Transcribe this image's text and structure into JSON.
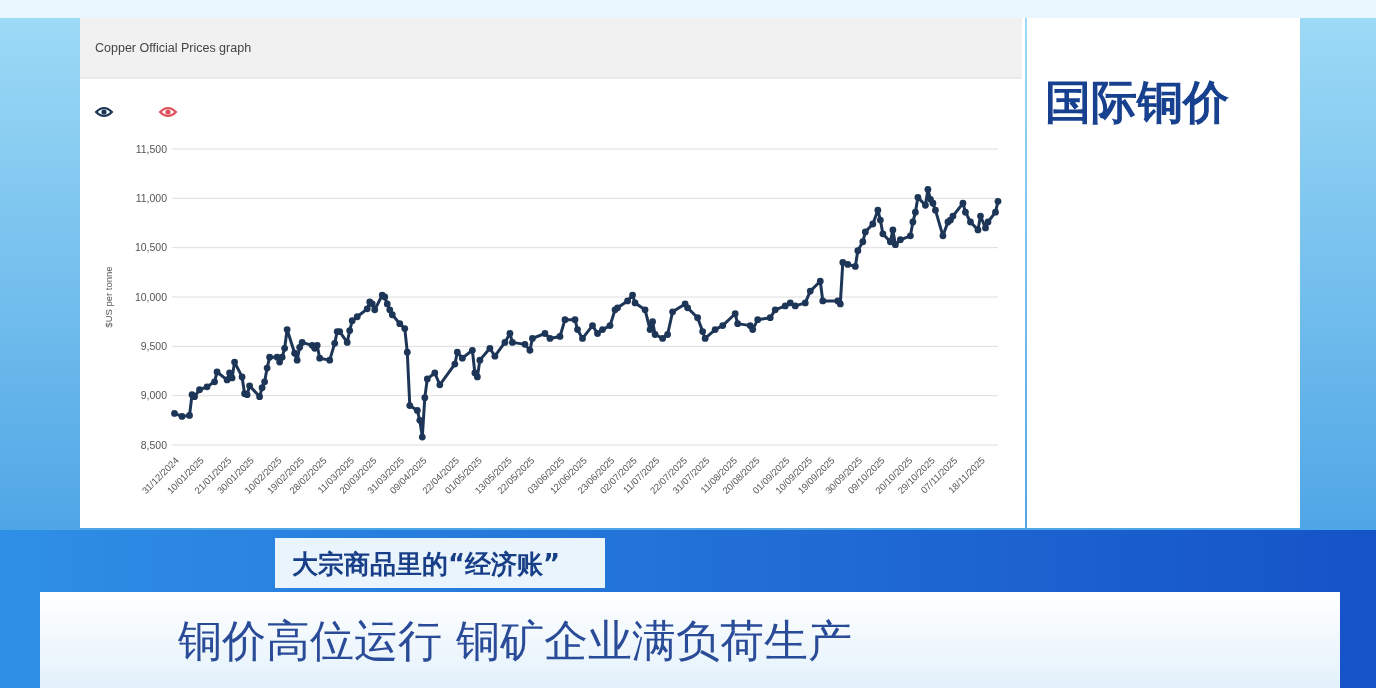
{
  "chart_data": {
    "type": "line",
    "title": "Copper Official Prices graph",
    "ylabel": "$US per tonne",
    "annotations": [
      "国际铜价",
      "大宗商品里的“经济账”",
      "铜价高位运行 铜矿企业满负荷生产"
    ],
    "color": "#1d3557",
    "marker": "circle",
    "grid": "y",
    "xlim": [
      "2024-12-30",
      "2025-11-25"
    ],
    "ylim": [
      8500,
      11500
    ],
    "yticks": [
      {
        "value": 8500,
        "label": "8,500"
      },
      {
        "value": 9000,
        "label": "9,000"
      },
      {
        "value": 9500,
        "label": "9,500"
      },
      {
        "value": 10000,
        "label": "10,000"
      },
      {
        "value": 10500,
        "label": "10,500"
      },
      {
        "value": 11000,
        "label": "11,000"
      },
      {
        "value": 11500,
        "label": "11,500"
      }
    ],
    "xticks": [
      {
        "value": "2024-12-31",
        "label": "31/12/2024"
      },
      {
        "value": "2025-01-10",
        "label": "10/01/2025"
      },
      {
        "value": "2025-01-21",
        "label": "21/01/2025"
      },
      {
        "value": "2025-01-30",
        "label": "30/01/2025"
      },
      {
        "value": "2025-02-10",
        "label": "10/02/2025"
      },
      {
        "value": "2025-02-19",
        "label": "19/02/2025"
      },
      {
        "value": "2025-02-28",
        "label": "28/02/2025"
      },
      {
        "value": "2025-03-11",
        "label": "11/03/2025"
      },
      {
        "value": "2025-03-20",
        "label": "20/03/2025"
      },
      {
        "value": "2025-03-31",
        "label": "31/03/2025"
      },
      {
        "value": "2025-04-09",
        "label": "09/04/2025"
      },
      {
        "value": "2025-04-22",
        "label": "22/04/2025"
      },
      {
        "value": "2025-05-01",
        "label": "01/05/2025"
      },
      {
        "value": "2025-05-13",
        "label": "13/05/2025"
      },
      {
        "value": "2025-05-22",
        "label": "22/05/2025"
      },
      {
        "value": "2025-06-03",
        "label": "03/06/2025"
      },
      {
        "value": "2025-06-12",
        "label": "12/06/2025"
      },
      {
        "value": "2025-06-23",
        "label": "23/06/2025"
      },
      {
        "value": "2025-07-02",
        "label": "02/07/2025"
      },
      {
        "value": "2025-07-11",
        "label": "11/07/2025"
      },
      {
        "value": "2025-07-22",
        "label": "22/07/2025"
      },
      {
        "value": "2025-07-31",
        "label": "31/07/2025"
      },
      {
        "value": "2025-08-11",
        "label": "11/08/2025"
      },
      {
        "value": "2025-08-20",
        "label": "20/08/2025"
      },
      {
        "value": "2025-09-01",
        "label": "01/09/2025"
      },
      {
        "value": "2025-09-10",
        "label": "10/09/2025"
      },
      {
        "value": "2025-09-19",
        "label": "19/09/2025"
      },
      {
        "value": "2025-09-30",
        "label": "30/09/2025"
      },
      {
        "value": "2025-10-09",
        "label": "09/10/2025"
      },
      {
        "value": "2025-10-20",
        "label": "20/10/2025"
      },
      {
        "value": "2025-10-29",
        "label": "29/10/2025"
      },
      {
        "value": "2025-11-07",
        "label": "07/11/2025"
      },
      {
        "value": "2025-11-18",
        "label": "18/11/2025"
      }
    ],
    "x": [
      "2024-12-31",
      "2025-01-03",
      "2025-01-06",
      "2025-01-07",
      "2025-01-08",
      "2025-01-10",
      "2025-01-13",
      "2025-01-16",
      "2025-01-17",
      "2025-01-21",
      "2025-01-22",
      "2025-01-23",
      "2025-01-24",
      "2025-01-27",
      "2025-01-28",
      "2025-01-29",
      "2025-01-30",
      "2025-02-03",
      "2025-02-04",
      "2025-02-05",
      "2025-02-06",
      "2025-02-07",
      "2025-02-10",
      "2025-02-11",
      "2025-02-12",
      "2025-02-13",
      "2025-02-14",
      "2025-02-17",
      "2025-02-18",
      "2025-02-19",
      "2025-02-20",
      "2025-02-24",
      "2025-02-25",
      "2025-02-26",
      "2025-02-27",
      "2025-03-03",
      "2025-03-05",
      "2025-03-06",
      "2025-03-07",
      "2025-03-10",
      "2025-03-11",
      "2025-03-12",
      "2025-03-14",
      "2025-03-18",
      "2025-03-19",
      "2025-03-20",
      "2025-03-21",
      "2025-03-24",
      "2025-03-25",
      "2025-03-26",
      "2025-03-27",
      "2025-03-28",
      "2025-03-31",
      "2025-04-02",
      "2025-04-03",
      "2025-04-04",
      "2025-04-07",
      "2025-04-08",
      "2025-04-09",
      "2025-04-10",
      "2025-04-11",
      "2025-04-14",
      "2025-04-16",
      "2025-04-22",
      "2025-04-23",
      "2025-04-25",
      "2025-04-29",
      "2025-04-30",
      "2025-05-01",
      "2025-05-02",
      "2025-05-06",
      "2025-05-08",
      "2025-05-12",
      "2025-05-14",
      "2025-05-15",
      "2025-05-20",
      "2025-05-22",
      "2025-05-23",
      "2025-05-28",
      "2025-05-30",
      "2025-06-03",
      "2025-06-05",
      "2025-06-09",
      "2025-06-10",
      "2025-06-12",
      "2025-06-16",
      "2025-06-18",
      "2025-06-20",
      "2025-06-23",
      "2025-06-25",
      "2025-06-26",
      "2025-06-30",
      "2025-07-02",
      "2025-07-03",
      "2025-07-07",
      "2025-07-09",
      "2025-07-10",
      "2025-07-11",
      "2025-07-14",
      "2025-07-16",
      "2025-07-18",
      "2025-07-23",
      "2025-07-24",
      "2025-07-28",
      "2025-07-30",
      "2025-07-31",
      "2025-08-04",
      "2025-08-07",
      "2025-08-12",
      "2025-08-13",
      "2025-08-18",
      "2025-08-19",
      "2025-08-21",
      "2025-08-26",
      "2025-08-28",
      "2025-09-01",
      "2025-09-03",
      "2025-09-05",
      "2025-09-09",
      "2025-09-11",
      "2025-09-15",
      "2025-09-16",
      "2025-09-22",
      "2025-09-23",
      "2025-09-24",
      "2025-09-26",
      "2025-09-29",
      "2025-09-30",
      "2025-10-02",
      "2025-10-03",
      "2025-10-06",
      "2025-10-08",
      "2025-10-09",
      "2025-10-10",
      "2025-10-13",
      "2025-10-14",
      "2025-10-15",
      "2025-10-17",
      "2025-10-21",
      "2025-10-22",
      "2025-10-23",
      "2025-10-24",
      "2025-10-27",
      "2025-10-28",
      "2025-10-29",
      "2025-10-30",
      "2025-10-31",
      "2025-11-03",
      "2025-11-05",
      "2025-11-06",
      "2025-11-07",
      "2025-11-11",
      "2025-11-12",
      "2025-11-14",
      "2025-11-17",
      "2025-11-18",
      "2025-11-20",
      "2025-11-21",
      "2025-11-24",
      "2025-11-25"
    ],
    "values": [
      8820,
      8790,
      8800,
      9010,
      8990,
      9060,
      9090,
      9140,
      9240,
      9160,
      9230,
      9180,
      9340,
      9190,
      9020,
      9010,
      9100,
      8990,
      9080,
      9140,
      9280,
      9390,
      9390,
      9340,
      9390,
      9480,
      9670,
      9430,
      9360,
      9490,
      9540,
      9510,
      9480,
      9510,
      9380,
      9360,
      9530,
      9650,
      9650,
      9540,
      9660,
      9760,
      9800,
      9880,
      9950,
      9930,
      9870,
      10020,
      10000,
      9930,
      9870,
      9820,
      9730,
      9680,
      9440,
      8900,
      8850,
      8750,
      8580,
      8980,
      9170,
      9230,
      9110,
      9320,
      9440,
      9380,
      9460,
      9230,
      9190,
      9360,
      9480,
      9400,
      9540,
      9630,
      9540,
      9520,
      9460,
      9580,
      9630,
      9580,
      9600,
      9770,
      9770,
      9670,
      9580,
      9710,
      9630,
      9670,
      9710,
      9870,
      9890,
      9960,
      10020,
      9940,
      9870,
      9670,
      9750,
      9620,
      9580,
      9620,
      9850,
      9930,
      9890,
      9790,
      9650,
      9580,
      9670,
      9710,
      9830,
      9730,
      9710,
      9670,
      9770,
      9790,
      9870,
      9910,
      9940,
      9910,
      9940,
      10060,
      10160,
      9960,
      9960,
      9930,
      10350,
      10330,
      10310,
      10470,
      10560,
      10660,
      10740,
      10880,
      10780,
      10640,
      10560,
      10680,
      10530,
      10580,
      10620,
      10760,
      10860,
      11010,
      10930,
      11090,
      10990,
      10950,
      10880,
      10620,
      10760,
      10780,
      10820,
      10950,
      10860,
      10760,
      10680,
      10820,
      10700,
      10760,
      10860,
      10970
    ]
  }
}
